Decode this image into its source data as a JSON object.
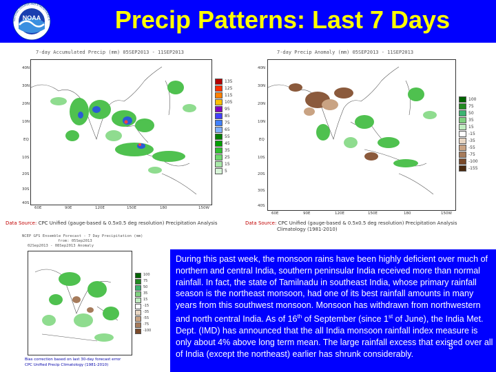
{
  "header": {
    "title": "Precip Patterns: Last 7 Days",
    "logo_label": "NOAA",
    "logo_ring_text": "NATIONAL OCEANIC AND ATMOSPHERIC ADMINISTRATION"
  },
  "colors": {
    "header_bg": "#0000ff",
    "title": "#ffff00",
    "textbox_bg": "#0000ff",
    "textbox_text": "#ffffff"
  },
  "maps": {
    "total": {
      "title": "7-day Accumulated Precip (mm) 05SEP2013 - 11SEP2013",
      "lat_labels": [
        "40N",
        "30N",
        "20N",
        "10N",
        "EQ",
        "10S",
        "20S",
        "30S",
        "40S"
      ],
      "lon_labels": [
        "60E",
        "90E",
        "120E",
        "150E",
        "180",
        "150W"
      ],
      "legend": [
        "135",
        "125",
        "115",
        "105",
        "95",
        "85",
        "75",
        "65",
        "55",
        "45",
        "35",
        "25",
        "15",
        "5"
      ],
      "source_label": "Data Source:",
      "source_text": "CPC Unified (gauge-based & 0.5x0.5 deg resolution) Precipitation Analysis"
    },
    "anomaly": {
      "title": "7-day Precip Anomaly (mm) 05SEP2013 - 11SEP2013",
      "lat_labels": [
        "40N",
        "30N",
        "20N",
        "10N",
        "EQ",
        "10S",
        "20S",
        "30S",
        "40S"
      ],
      "lon_labels": [
        "60E",
        "90E",
        "120E",
        "150E",
        "180",
        "150W"
      ],
      "legend": [
        "100",
        "75",
        "50",
        "35",
        "15",
        "-15",
        "-35",
        "-55",
        "-75",
        "-100",
        "-155"
      ],
      "source_label": "Data Source:",
      "source_text_1": "CPC Unified (gauge-based & 0.5x0.5 deg resolution) Precipitation Analysis",
      "source_text_2": "Climatology (1981-2010)"
    },
    "forecast": {
      "title_1": "NCEP GFS Ensemble Forecast - 7 Day Precipitation (mm)",
      "title_2": "from: 05Sep2013",
      "title_3": "02Sep2013 - 08Sep2013 Anomaly",
      "legend": [
        "100",
        "75",
        "50",
        "35",
        "15",
        "-15",
        "-35",
        "-55",
        "-75",
        "-100"
      ],
      "footer_1": "Bias correction based on last 30-day forecast error",
      "footer_2": "CPC Unified Precip Climatology (1981-2010)"
    }
  },
  "text_box": {
    "line_1": "During this past week, the monsoon rains have been highly deficient over much of northern and central India, southern peninsular India received more than normal rainfall. In fact, the state of Tamilnadu in southeast India, whose primary rainfall season is the northeast monsoon, had one of its best rainfall amounts in many years from this southwest monsoon. Monsoon has withdrawn from northwestern and north central India. As of 16",
    "sup_1": "th",
    "line_2": " of September (since 1",
    "sup_2": "st",
    "line_3": " of June), the India Met. Dept. (IMD) has announced that the all India monsoon rainfall index measure is only about 4% above long term mean. The large rainfall excess that existed over all of India (except the northeast) earlier has shrunk considerably.",
    "slide_number": "5"
  }
}
